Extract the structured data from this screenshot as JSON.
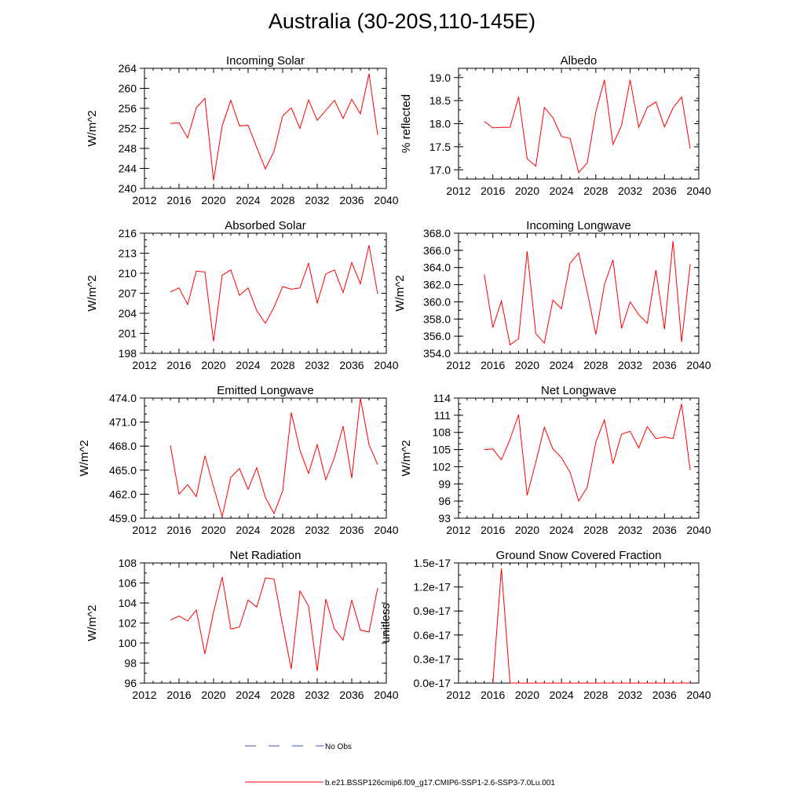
{
  "figure": {
    "title": "Australia (30-20S,110-145E)",
    "legend": {
      "no_obs_label": "No Obs",
      "model_label": "b.e21.BSSP126cmip6.f09_g17.CMIP6-SSP1-2.6-SSP3-7.0Lu.001",
      "no_obs_color": "#3b4cc0",
      "model_color": "#ff0000"
    }
  },
  "chart_data": [
    {
      "type": "line",
      "title": "Incoming Solar",
      "ylabel": "W/m^2",
      "xlim": [
        2012,
        2040
      ],
      "ylim": [
        240,
        264
      ],
      "xticks": [
        "2012",
        "2016",
        "2020",
        "2024",
        "2028",
        "2032",
        "2036",
        "2040"
      ],
      "yticks": [
        "240",
        "244",
        "248",
        "252",
        "256",
        "260",
        "264"
      ],
      "x": [
        2015,
        2016,
        2017,
        2018,
        2019,
        2020,
        2021,
        2022,
        2023,
        2024,
        2025,
        2026,
        2027,
        2028,
        2029,
        2030,
        2031,
        2032,
        2033,
        2034,
        2035,
        2036,
        2037,
        2038,
        2039
      ],
      "series": [
        {
          "values": [
            253.0,
            253.1,
            250.1,
            256.1,
            258.0,
            241.6,
            252.5,
            257.6,
            252.5,
            252.6,
            248.2,
            243.9,
            247.4,
            254.5,
            256.1,
            252.0,
            257.7,
            253.6,
            255.6,
            257.6,
            254.0,
            257.8,
            254.9,
            262.9,
            250.7
          ]
        }
      ]
    },
    {
      "type": "line",
      "title": "Albedo",
      "ylabel": "% reflected",
      "xlim": [
        2012,
        2040
      ],
      "ylim": [
        16.8,
        19.2
      ],
      "xticks": [
        "2012",
        "2016",
        "2020",
        "2024",
        "2028",
        "2032",
        "2036",
        "2040"
      ],
      "yticks": [
        "17.0",
        "17.5",
        "18.0",
        "18.5",
        "19.0"
      ],
      "x": [
        2015,
        2016,
        2017,
        2018,
        2019,
        2020,
        2021,
        2022,
        2023,
        2024,
        2025,
        2026,
        2027,
        2028,
        2029,
        2030,
        2031,
        2032,
        2033,
        2034,
        2035,
        2036,
        2037,
        2038,
        2039
      ],
      "series": [
        {
          "values": [
            18.05,
            17.91,
            17.92,
            17.92,
            18.58,
            17.24,
            17.08,
            18.35,
            18.13,
            17.72,
            17.68,
            16.94,
            17.15,
            18.26,
            18.95,
            17.55,
            17.96,
            18.95,
            17.92,
            18.35,
            18.47,
            17.93,
            18.34,
            18.58,
            17.46
          ]
        }
      ]
    },
    {
      "type": "line",
      "title": "Absorbed Solar",
      "ylabel": "W/m^2",
      "xlim": [
        2012,
        2040
      ],
      "ylim": [
        198,
        216
      ],
      "xticks": [
        "2012",
        "2016",
        "2020",
        "2024",
        "2028",
        "2032",
        "2036",
        "2040"
      ],
      "yticks": [
        "198",
        "201",
        "204",
        "207",
        "210",
        "213",
        "216"
      ],
      "x": [
        2015,
        2016,
        2017,
        2018,
        2019,
        2020,
        2021,
        2022,
        2023,
        2024,
        2025,
        2026,
        2027,
        2028,
        2029,
        2030,
        2031,
        2032,
        2033,
        2034,
        2035,
        2036,
        2037,
        2038,
        2039
      ],
      "series": [
        {
          "values": [
            207.2,
            207.8,
            205.3,
            210.3,
            210.2,
            199.8,
            209.7,
            210.5,
            206.7,
            207.8,
            204.4,
            202.5,
            204.9,
            208.0,
            207.6,
            207.8,
            211.5,
            205.5,
            209.9,
            210.5,
            207.1,
            211.6,
            208.4,
            214.2,
            206.9
          ]
        }
      ]
    },
    {
      "type": "line",
      "title": "Incoming Longwave",
      "ylabel": "W/m^2",
      "xlim": [
        2012,
        2040
      ],
      "ylim": [
        354,
        368
      ],
      "xticks": [
        "2012",
        "2016",
        "2020",
        "2024",
        "2028",
        "2032",
        "2036",
        "2040"
      ],
      "yticks": [
        "354.0",
        "356.0",
        "358.0",
        "360.0",
        "362.0",
        "364.0",
        "366.0",
        "368.0"
      ],
      "x": [
        2015,
        2016,
        2017,
        2018,
        2019,
        2020,
        2021,
        2022,
        2023,
        2024,
        2025,
        2026,
        2027,
        2028,
        2029,
        2030,
        2031,
        2032,
        2033,
        2034,
        2035,
        2036,
        2037,
        2038,
        2039
      ],
      "series": [
        {
          "values": [
            363.2,
            357.0,
            360.1,
            355.0,
            355.7,
            365.9,
            356.3,
            355.2,
            360.2,
            359.2,
            364.5,
            365.7,
            361.2,
            356.2,
            362.0,
            364.9,
            356.9,
            360.0,
            358.5,
            357.5,
            363.7,
            356.8,
            367.1,
            355.3,
            364.4
          ]
        }
      ]
    },
    {
      "type": "line",
      "title": "Emitted Longwave",
      "ylabel": "W/m^2",
      "xlim": [
        2012,
        2040
      ],
      "ylim": [
        459,
        474
      ],
      "xticks": [
        "2012",
        "2016",
        "2020",
        "2024",
        "2028",
        "2032",
        "2036",
        "2040"
      ],
      "yticks": [
        "459.0",
        "462.0",
        "465.0",
        "468.0",
        "471.0",
        "474.0"
      ],
      "x": [
        2015,
        2016,
        2017,
        2018,
        2019,
        2020,
        2021,
        2022,
        2023,
        2024,
        2025,
        2026,
        2027,
        2028,
        2029,
        2030,
        2031,
        2032,
        2033,
        2034,
        2035,
        2036,
        2037,
        2038,
        2039
      ],
      "series": [
        {
          "values": [
            468.1,
            462.0,
            463.2,
            461.7,
            466.8,
            462.9,
            459.2,
            464.1,
            465.2,
            462.6,
            465.3,
            461.6,
            459.6,
            462.4,
            472.2,
            467.5,
            464.6,
            468.2,
            463.8,
            466.6,
            470.5,
            464.0,
            474.0,
            468.2,
            465.7
          ]
        }
      ]
    },
    {
      "type": "line",
      "title": "Net Longwave",
      "ylabel": "W/m^2",
      "xlim": [
        2012,
        2040
      ],
      "ylim": [
        93,
        114
      ],
      "xticks": [
        "2012",
        "2016",
        "2020",
        "2024",
        "2028",
        "2032",
        "2036",
        "2040"
      ],
      "yticks": [
        "93",
        "96",
        "99",
        "102",
        "105",
        "108",
        "111",
        "114"
      ],
      "x": [
        2015,
        2016,
        2017,
        2018,
        2019,
        2020,
        2021,
        2022,
        2023,
        2024,
        2025,
        2026,
        2027,
        2028,
        2029,
        2030,
        2031,
        2032,
        2033,
        2034,
        2035,
        2036,
        2037,
        2038,
        2039
      ],
      "series": [
        {
          "values": [
            105.0,
            105.1,
            103.2,
            106.8,
            111.1,
            97.0,
            102.8,
            108.9,
            105.1,
            103.6,
            101.0,
            96.0,
            98.4,
            106.3,
            110.2,
            102.5,
            107.7,
            108.2,
            105.3,
            109.0,
            106.9,
            107.2,
            106.9,
            113.0,
            101.4
          ]
        }
      ]
    },
    {
      "type": "line",
      "title": "Net Radiation",
      "ylabel": "W/m^2",
      "xlim": [
        2012,
        2040
      ],
      "ylim": [
        96,
        108
      ],
      "xticks": [
        "2012",
        "2016",
        "2020",
        "2024",
        "2028",
        "2032",
        "2036",
        "2040"
      ],
      "yticks": [
        "96",
        "98",
        "100",
        "102",
        "104",
        "106",
        "108"
      ],
      "x": [
        2015,
        2016,
        2017,
        2018,
        2019,
        2020,
        2021,
        2022,
        2023,
        2024,
        2025,
        2026,
        2027,
        2028,
        2029,
        2030,
        2031,
        2032,
        2033,
        2034,
        2035,
        2036,
        2037,
        2038,
        2039
      ],
      "series": [
        {
          "values": [
            102.3,
            102.7,
            102.2,
            103.3,
            98.9,
            103.1,
            106.6,
            101.4,
            101.6,
            104.3,
            103.6,
            106.5,
            106.4,
            101.8,
            97.4,
            105.2,
            103.7,
            97.2,
            104.4,
            101.4,
            100.3,
            104.3,
            101.3,
            101.1,
            105.5
          ]
        }
      ]
    },
    {
      "type": "line",
      "title": "Ground Snow Covered Fraction",
      "ylabel": "unitless",
      "xlim": [
        2012,
        2040
      ],
      "ylim": [
        0,
        1.5
      ],
      "xticks": [
        "2012",
        "2016",
        "2020",
        "2024",
        "2028",
        "2032",
        "2036",
        "2040"
      ],
      "yticks": [
        "0.0e-17",
        "0.3e-17",
        "0.6e-17",
        "0.9e-17",
        "1.2e-17",
        "1.5e-17"
      ],
      "x": [
        2016,
        2017,
        2018,
        2019,
        2020,
        2021,
        2022,
        2023,
        2024,
        2025,
        2026,
        2027,
        2028,
        2029,
        2030,
        2031,
        2032,
        2033,
        2034,
        2035,
        2036,
        2037,
        2038,
        2039
      ],
      "series": [
        {
          "values": [
            0,
            1.43,
            0,
            0,
            0,
            0,
            0,
            0,
            0,
            0,
            0,
            0,
            0,
            0,
            0,
            0,
            0,
            0,
            0,
            0,
            0,
            0,
            0,
            0
          ]
        }
      ]
    }
  ]
}
